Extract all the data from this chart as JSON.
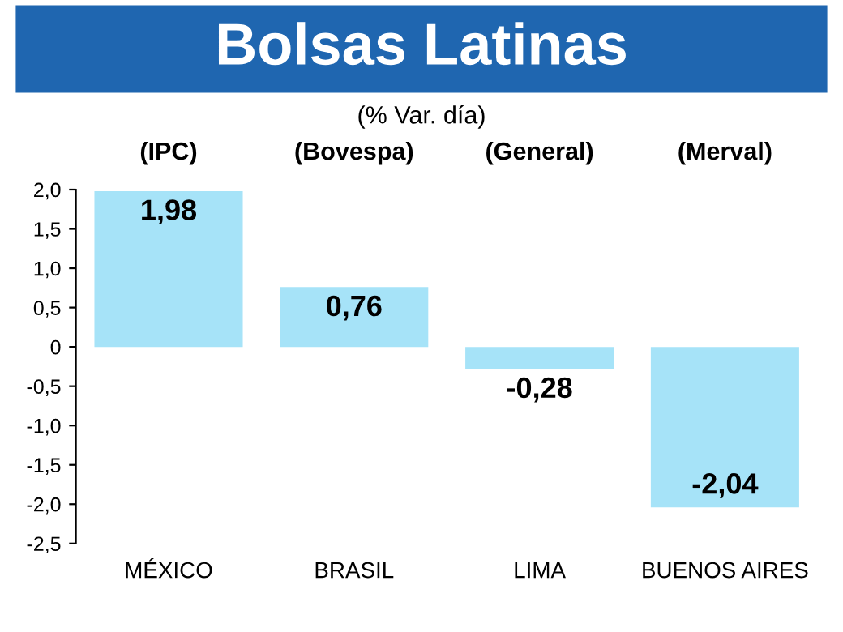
{
  "chart_data": {
    "type": "bar",
    "title": "Bolsas Latinas",
    "subtitle": "(% Var. día)",
    "categories": [
      "MÉXICO",
      "BRASIL",
      "LIMA",
      "BUENOS AIRES"
    ],
    "values": [
      1.98,
      0.76,
      -0.28,
      -2.04
    ],
    "value_labels": [
      "1,98",
      "0,76",
      "-0,28",
      "-2,04"
    ],
    "color": "#a6e3f8",
    "ylim": [
      -2.5,
      2.0
    ],
    "yticks": [
      {
        "value": 2.0,
        "label": "2,0"
      },
      {
        "value": 1.5,
        "label": "1,5"
      },
      {
        "value": 1.0,
        "label": "1,0"
      },
      {
        "value": 0.5,
        "label": "0,5"
      },
      0,
      {
        "value": -0.5,
        "label": "-0,5"
      },
      {
        "value": -1.0,
        "label": "-1,0"
      },
      {
        "value": -1.5,
        "label": "-1,5"
      },
      {
        "value": -2.0,
        "label": "-2,0"
      },
      {
        "value": -2.5,
        "label": "-2,5"
      }
    ],
    "annotations": [
      "(IPC)",
      "(Bovespa)",
      "(General)",
      "(Merval)"
    ],
    "grid": false
  }
}
